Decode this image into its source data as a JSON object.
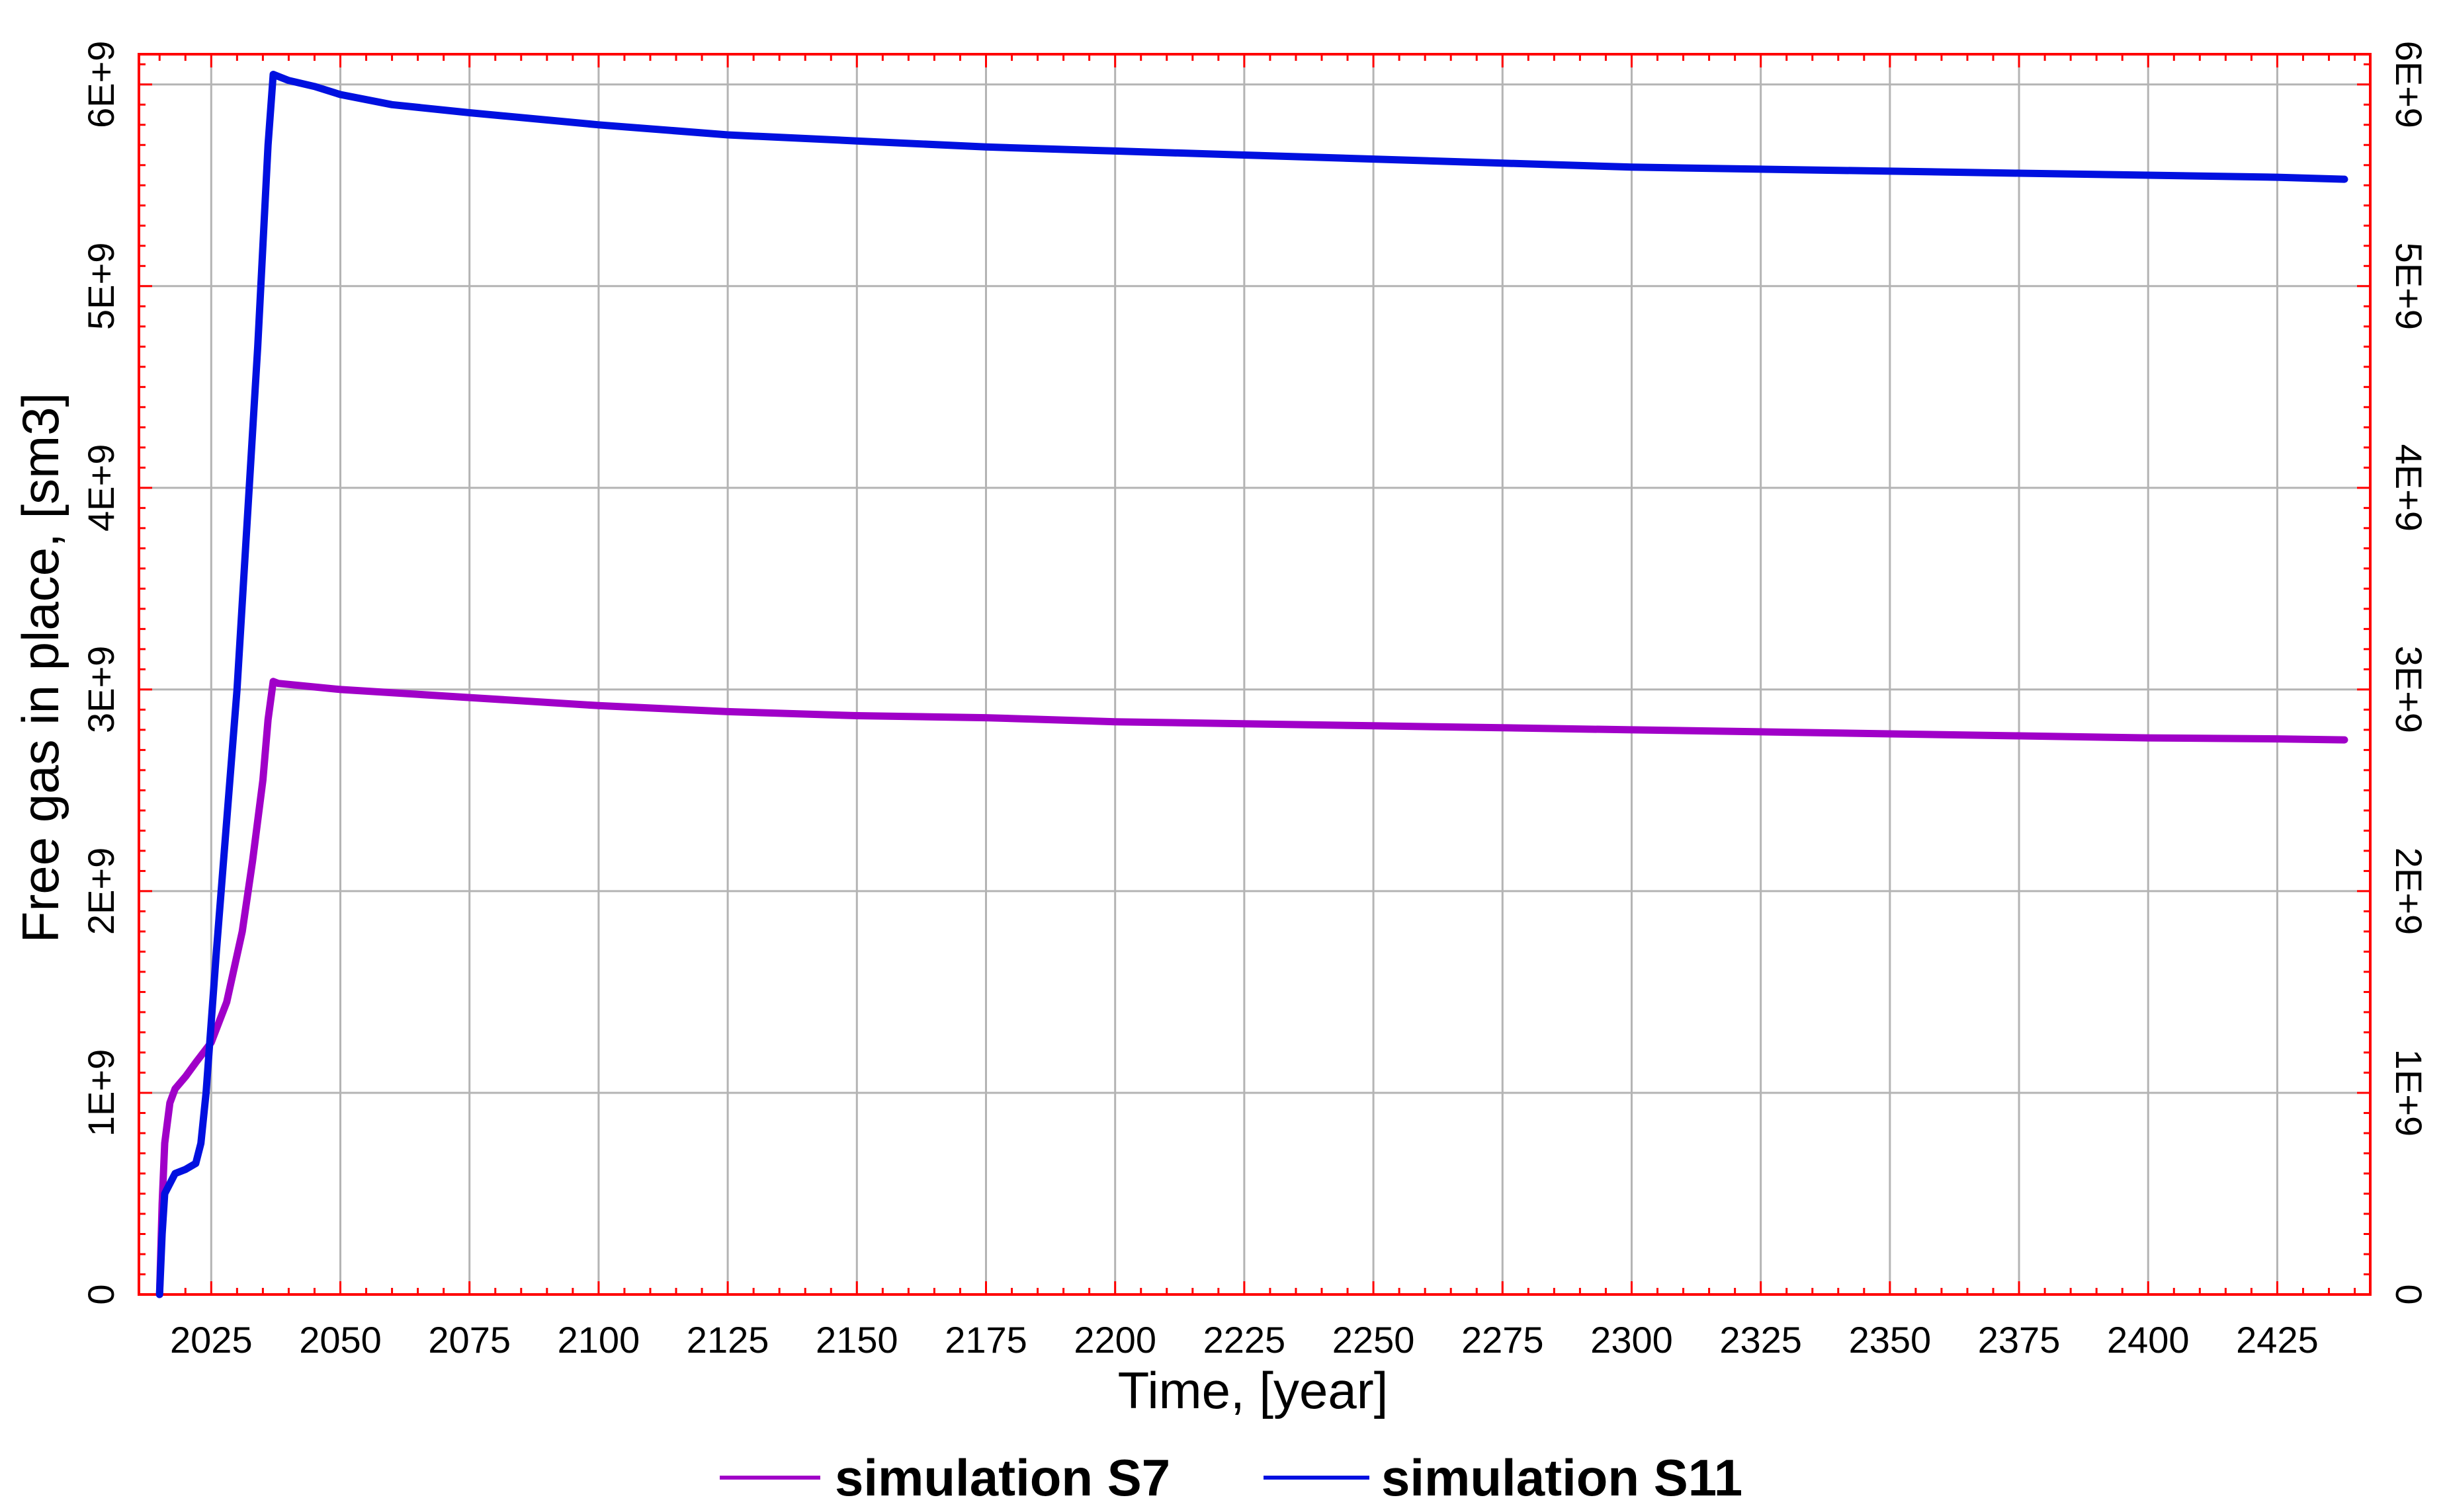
{
  "chart_data": {
    "type": "line",
    "title": "",
    "xlabel": "Time, [year]",
    "ylabel": "Free gas in place, [sm3]",
    "xlim": [
      2011,
      2443
    ],
    "ylim": [
      0,
      6150000000
    ],
    "x_ticks": [
      2025,
      2050,
      2075,
      2100,
      2125,
      2150,
      2175,
      2200,
      2225,
      2250,
      2275,
      2300,
      2325,
      2350,
      2375,
      2400,
      2425
    ],
    "x_tick_labels": [
      "2025",
      "2050",
      "2075",
      "2100",
      "2125",
      "2150",
      "2175",
      "2200",
      "2225",
      "2250",
      "2275",
      "2300",
      "2325",
      "2350",
      "2375",
      "2400",
      "2425"
    ],
    "y_ticks": [
      0,
      1000000000,
      2000000000,
      3000000000,
      4000000000,
      5000000000,
      6000000000
    ],
    "y_tick_labels": [
      "0",
      "1E+9",
      "2E+9",
      "3E+9",
      "4E+9",
      "5E+9",
      "6E+9"
    ],
    "grid": true,
    "legend_position": "bottom-center",
    "frame_color": "#ff0000",
    "grid_color": "#b4b4b4",
    "series": [
      {
        "name": "simulation S7",
        "color": "#a000c8",
        "x": [
          2015,
          2015.5,
          2016,
          2017,
          2018,
          2020,
          2022,
          2025,
          2028,
          2031,
          2033,
          2035,
          2036,
          2037,
          2038,
          2050,
          2075,
          2100,
          2125,
          2150,
          2175,
          2200,
          2225,
          2250,
          2275,
          2300,
          2325,
          2350,
          2375,
          2400,
          2425,
          2438
        ],
        "values": [
          0,
          450000000,
          750000000,
          950000000,
          1020000000,
          1080000000,
          1150000000,
          1250000000,
          1450000000,
          1800000000,
          2150000000,
          2550000000,
          2850000000,
          3040000000,
          3030000000,
          3000000000,
          2960000000,
          2920000000,
          2890000000,
          2870000000,
          2860000000,
          2840000000,
          2830000000,
          2820000000,
          2810000000,
          2800000000,
          2790000000,
          2780000000,
          2770000000,
          2760000000,
          2755000000,
          2750000000
        ]
      },
      {
        "name": "simulation S11",
        "color": "#0010e0",
        "x": [
          2015,
          2015.5,
          2016,
          2018,
          2020,
          2022,
          2023,
          2024,
          2026,
          2030,
          2034,
          2036,
          2037,
          2038,
          2040,
          2045,
          2050,
          2060,
          2075,
          2100,
          2125,
          2150,
          2175,
          2200,
          2225,
          2250,
          2275,
          2300,
          2325,
          2350,
          2375,
          2400,
          2425,
          2438
        ],
        "values": [
          0,
          300000000,
          500000000,
          600000000,
          620000000,
          650000000,
          750000000,
          1000000000,
          1700000000,
          3000000000,
          4700000000,
          5700000000,
          6050000000,
          6040000000,
          6020000000,
          5990000000,
          5950000000,
          5900000000,
          5860000000,
          5800000000,
          5750000000,
          5720000000,
          5690000000,
          5670000000,
          5650000000,
          5630000000,
          5610000000,
          5590000000,
          5580000000,
          5570000000,
          5560000000,
          5550000000,
          5540000000,
          5530000000
        ]
      }
    ]
  }
}
